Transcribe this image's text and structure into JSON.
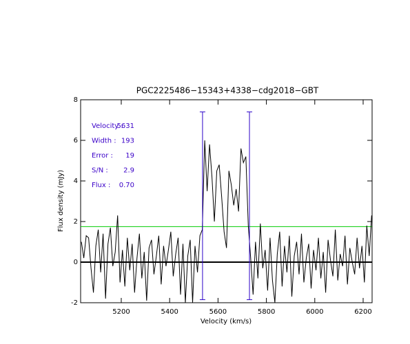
{
  "chart_data": {
    "type": "line",
    "title": "PGC2225486−15343+4338−cdg2018−GBT",
    "xlabel": "Velocity (km/s)",
    "ylabel": "Flux density (mJy)",
    "x": [
      5035,
      5045,
      5055,
      5065,
      5075,
      5085,
      5095,
      5105,
      5115,
      5125,
      5135,
      5145,
      5155,
      5165,
      5175,
      5185,
      5195,
      5205,
      5215,
      5225,
      5235,
      5245,
      5255,
      5265,
      5275,
      5285,
      5295,
      5305,
      5315,
      5325,
      5335,
      5345,
      5355,
      5365,
      5375,
      5385,
      5395,
      5405,
      5415,
      5425,
      5435,
      5445,
      5455,
      5465,
      5475,
      5485,
      5495,
      5505,
      5515,
      5525,
      5535,
      5545,
      5555,
      5565,
      5575,
      5585,
      5595,
      5605,
      5615,
      5625,
      5635,
      5645,
      5655,
      5665,
      5675,
      5685,
      5695,
      5705,
      5715,
      5725,
      5735,
      5745,
      5755,
      5765,
      5775,
      5785,
      5795,
      5805,
      5815,
      5825,
      5835,
      5845,
      5855,
      5865,
      5875,
      5885,
      5895,
      5905,
      5915,
      5925,
      5935,
      5945,
      5955,
      5965,
      5975,
      5985,
      5995,
      6005,
      6015,
      6025,
      6035,
      6045,
      6055,
      6065,
      6075,
      6085,
      6095,
      6105,
      6115,
      6125,
      6135,
      6145,
      6155,
      6165,
      6175,
      6185,
      6195,
      6205,
      6215,
      6225,
      6235
    ],
    "series": [
      {
        "color": "#000000",
        "values": [
          1.0,
          0.2,
          1.3,
          1.2,
          -0.3,
          -1.5,
          0.8,
          1.6,
          -0.5,
          1.4,
          -1.8,
          0.9,
          1.7,
          -0.2,
          0.5,
          2.3,
          -1.0,
          0.6,
          -1.2,
          1.2,
          -0.4,
          0.9,
          -1.5,
          0.2,
          1.4,
          -0.8,
          0.5,
          -1.9,
          0.7,
          1.1,
          -0.6,
          0.3,
          1.3,
          -1.1,
          0.8,
          -0.2,
          0.6,
          1.5,
          -0.7,
          0.4,
          1.2,
          -1.6,
          0.9,
          -2.0,
          0.3,
          1.1,
          -2.0,
          0.8,
          -0.5,
          1.3,
          1.6,
          6.0,
          3.5,
          5.8,
          4.2,
          2.0,
          4.5,
          4.8,
          3.2,
          1.5,
          0.7,
          4.5,
          3.8,
          2.8,
          3.6,
          2.5,
          5.6,
          4.9,
          5.2,
          1.8,
          0.2,
          -1.6,
          1.0,
          -0.8,
          1.9,
          -0.3,
          0.6,
          -1.4,
          1.2,
          -0.9,
          -2.0,
          0.4,
          1.5,
          -1.2,
          0.8,
          -0.5,
          1.3,
          -1.7,
          0.3,
          1.0,
          -0.6,
          1.4,
          -1.0,
          0.2,
          0.9,
          -1.3,
          0.6,
          -0.4,
          1.2,
          -0.8,
          0.5,
          -1.5,
          1.1,
          0.1,
          -0.7,
          1.6,
          -0.9,
          0.4,
          -0.2,
          1.3,
          -1.1,
          0.7,
          0.0,
          -0.6,
          1.2,
          -0.3,
          0.8,
          -1.0,
          1.8,
          0.3,
          2.3
        ]
      }
    ],
    "hlines": [
      {
        "y": 1.75,
        "color": "#00cc00"
      },
      {
        "y": 0,
        "color": "#000000"
      }
    ],
    "vlines": [
      {
        "x": 5536,
        "y": [
          -1.85,
          7.4
        ],
        "color": "#2a00c8"
      },
      {
        "x": 5730,
        "y": [
          -1.85,
          7.4
        ],
        "color": "#2a00c8"
      }
    ],
    "annotations": [
      {
        "label": "Velocity :",
        "value": "5631"
      },
      {
        "label": "Width :",
        "value": "193"
      },
      {
        "label": "Error :",
        "value": "19"
      },
      {
        "label": "S/N :",
        "value": "2.9"
      },
      {
        "label": "Flux :",
        "value": "0.70"
      }
    ],
    "xlim": [
      5032,
      6237
    ],
    "xticks": [
      5200,
      5400,
      5600,
      5800,
      6000,
      6200
    ],
    "ylim": [
      -2,
      8
    ],
    "yticks": [
      -2,
      0,
      2,
      4,
      6,
      8
    ]
  }
}
